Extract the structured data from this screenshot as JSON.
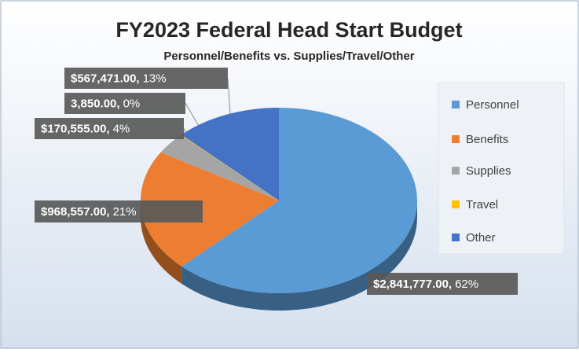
{
  "chart_data": {
    "type": "pie3d",
    "title": "FY2023 Federal Head Start Budget",
    "subtitle": "Personnel/Benefits vs. Supplies/Travel/Other",
    "categories": [
      "Personnel",
      "Benefits",
      "Supplies",
      "Travel",
      "Other"
    ],
    "values": [
      2841777,
      968557,
      170555,
      3850,
      567471
    ],
    "value_labels": [
      "$2,841,777.00,",
      "$968,557.00,",
      "$170,555.00,",
      "3,850.00,",
      "$567,471.00,"
    ],
    "percent_labels": [
      "62%",
      "21%",
      "4%",
      "0%",
      "13%"
    ],
    "colors": [
      "#5b9bd5",
      "#ed7d31",
      "#a5a5a5",
      "#ffc000",
      "#4472c4"
    ],
    "legend": "right"
  }
}
